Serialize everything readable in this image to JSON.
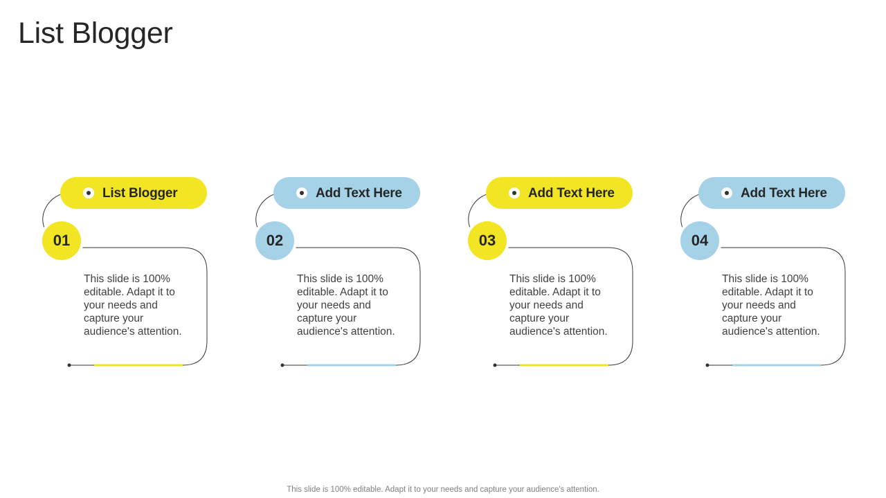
{
  "slide": {
    "title": "List Blogger",
    "footer": "This slide is 100% editable. Adapt it to your needs and capture your audience's attention.",
    "colors": {
      "yellow": "#F2E524",
      "blue": "#A6D2E8",
      "line": "#333333"
    },
    "cards": [
      {
        "number": "01",
        "heading": "List Blogger",
        "text": "This slide is 100% editable. Adapt it to your needs and capture your audience's attention.",
        "color": "yellow"
      },
      {
        "number": "02",
        "heading": "Add Text Here",
        "text": "This slide is 100% editable. Adapt it to your needs and capture your audience's attention.",
        "color": "blue"
      },
      {
        "number": "03",
        "heading": "Add Text Here",
        "text": "This slide is 100% editable. Adapt it to your needs and capture your audience's attention.",
        "color": "yellow"
      },
      {
        "number": "04",
        "heading": "Add Text Here",
        "text": "This slide is 100% editable. Adapt it to your needs and capture your audience's attention.",
        "color": "blue"
      }
    ]
  }
}
